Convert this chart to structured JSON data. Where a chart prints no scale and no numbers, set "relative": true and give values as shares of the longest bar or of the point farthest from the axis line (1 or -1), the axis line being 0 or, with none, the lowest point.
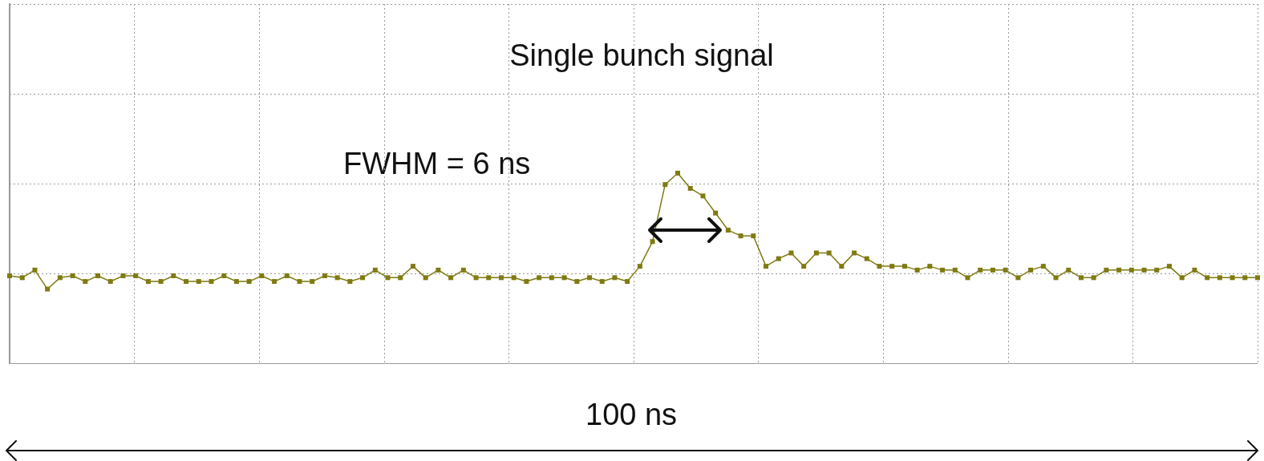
{
  "chart_data": {
    "type": "line",
    "title": "Single bunch signal",
    "relative": true,
    "grid": true,
    "marker": "square",
    "line_style": "solid",
    "categories": [
      null,
      null,
      null,
      null,
      null,
      null,
      null,
      null,
      null,
      null,
      null,
      null,
      null,
      null,
      null,
      null,
      null,
      null,
      null,
      null,
      null,
      null,
      null,
      null,
      null,
      null,
      null,
      null,
      null,
      null,
      null,
      null,
      null,
      null,
      null,
      null,
      null,
      null,
      null,
      null,
      null,
      null,
      null,
      null,
      null,
      null,
      null,
      null,
      null,
      null,
      null,
      null,
      null,
      null,
      null,
      null,
      null,
      null,
      null,
      null,
      null,
      null,
      null,
      null,
      null,
      null,
      null,
      null,
      null,
      null,
      null,
      null,
      null,
      null,
      null,
      null,
      null,
      null,
      null,
      null,
      null,
      null,
      null,
      null,
      null,
      null,
      null,
      null,
      null,
      null,
      null,
      null,
      null,
      null,
      null,
      null,
      null,
      null,
      null,
      null
    ],
    "series": [
      {
        "color": "#7f7b12",
        "values": [
          0.46,
          0.45,
          0.49,
          0.39,
          0.45,
          0.46,
          0.43,
          0.46,
          0.43,
          0.46,
          0.46,
          0.43,
          0.43,
          0.46,
          0.43,
          0.43,
          0.43,
          0.46,
          0.43,
          0.43,
          0.46,
          0.43,
          0.46,
          0.43,
          0.43,
          0.46,
          0.45,
          0.43,
          0.45,
          0.49,
          0.45,
          0.45,
          0.51,
          0.45,
          0.49,
          0.45,
          0.49,
          0.45,
          0.45,
          0.45,
          0.45,
          0.43,
          0.45,
          0.45,
          0.45,
          0.43,
          0.45,
          0.43,
          0.45,
          0.43,
          0.51,
          0.64,
          0.94,
          1,
          0.92,
          0.88,
          0.79,
          0.7,
          0.67,
          0.67,
          0.51,
          0.55,
          0.58,
          0.51,
          0.58,
          0.58,
          0.51,
          0.58,
          0.55,
          0.51,
          0.51,
          0.51,
          0.49,
          0.51,
          0.49,
          0.49,
          0.45,
          0.49,
          0.49,
          0.49,
          0.45,
          0.49,
          0.51,
          0.45,
          0.49,
          0.45,
          0.45,
          0.49,
          0.49,
          0.49,
          0.49,
          0.49,
          0.51,
          0.45,
          0.49,
          0.45,
          0.45,
          0.45,
          0.45,
          0.45
        ]
      }
    ],
    "annotations": [
      "FWHM = 6 ns",
      "100 ns"
    ]
  }
}
